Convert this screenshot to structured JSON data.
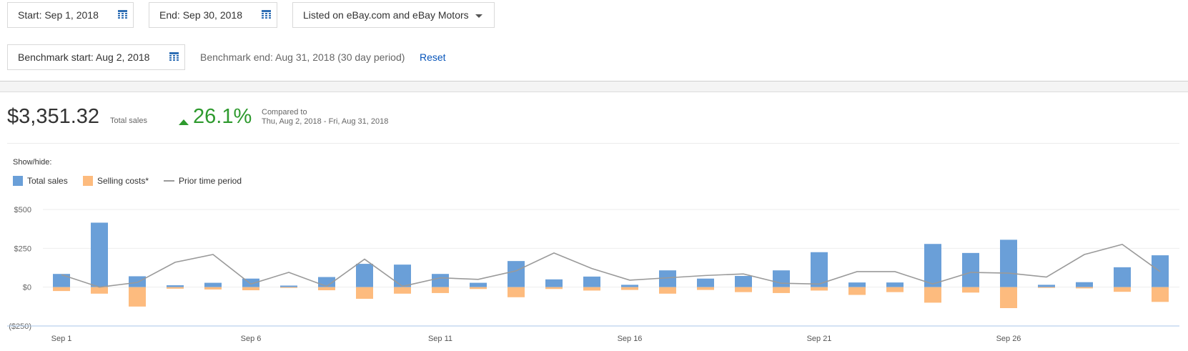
{
  "filters": {
    "start_label": "Start: Sep 1, 2018",
    "end_label": "End: Sep 30, 2018",
    "listing_label": "Listed on eBay.com and eBay Motors",
    "benchmark_start_label": "Benchmark start: Aug 2, 2018",
    "benchmark_end_text": "Benchmark end: Aug 31, 2018 (30 day period)",
    "reset_label": "Reset"
  },
  "summary": {
    "total_sales_value": "$3,351.32",
    "total_sales_label": "Total sales",
    "change_pct": "26.1%",
    "compared_to_label": "Compared to",
    "compared_range": "Thu, Aug 2, 2018 - Fri, Aug 31, 2018"
  },
  "legend": {
    "show_hide_label": "Show/hide:",
    "items": [
      {
        "label": "Total sales",
        "color": "#6a9fd8"
      },
      {
        "label": "Selling costs*",
        "color": "#fdbb7e"
      },
      {
        "label": "Prior time period",
        "color": "#9a9a9a"
      }
    ]
  },
  "colors": {
    "accent_link": "#0654ba",
    "positive": "#2e9a2e",
    "calendar_icon": "#2f6fb5"
  },
  "chart_data": {
    "type": "bar",
    "categories": [
      "Sep 1",
      "Sep 2",
      "Sep 3",
      "Sep 4",
      "Sep 5",
      "Sep 6",
      "Sep 7",
      "Sep 8",
      "Sep 9",
      "Sep 10",
      "Sep 11",
      "Sep 12",
      "Sep 13",
      "Sep 14",
      "Sep 15",
      "Sep 16",
      "Sep 17",
      "Sep 18",
      "Sep 19",
      "Sep 20",
      "Sep 21",
      "Sep 22",
      "Sep 23",
      "Sep 24",
      "Sep 25",
      "Sep 26",
      "Sep 27",
      "Sep 28",
      "Sep 29",
      "Sep 30"
    ],
    "series": [
      {
        "name": "Total sales",
        "values": [
          85,
          415,
          70,
          12,
          28,
          55,
          10,
          65,
          150,
          145,
          85,
          28,
          168,
          50,
          68,
          15,
          108,
          55,
          72,
          108,
          225,
          30,
          30,
          278,
          220,
          305,
          15,
          32,
          128,
          205
        ]
      },
      {
        "name": "Selling costs*",
        "values": [
          -25,
          -42,
          -125,
          -10,
          -15,
          -20,
          -5,
          -20,
          -75,
          -42,
          -38,
          -12,
          -65,
          -12,
          -22,
          -18,
          -42,
          -18,
          -32,
          -38,
          -22,
          -50,
          -32,
          -100,
          -35,
          -135,
          -5,
          -8,
          -30,
          -95
        ]
      },
      {
        "name": "Prior time period",
        "values": [
          80,
          0,
          30,
          160,
          210,
          20,
          95,
          5,
          180,
          5,
          60,
          50,
          105,
          220,
          120,
          45,
          60,
          75,
          85,
          25,
          20,
          100,
          100,
          20,
          95,
          90,
          65,
          210,
          275,
          100
        ]
      }
    ],
    "y_ticks": [
      "$500",
      "$250",
      "$0",
      "($250)"
    ],
    "ylim": [
      -250,
      500
    ],
    "x_tick_labels": [
      "Sep 1",
      "Sep 6",
      "Sep 11",
      "Sep 16",
      "Sep 21",
      "Sep 26"
    ]
  }
}
